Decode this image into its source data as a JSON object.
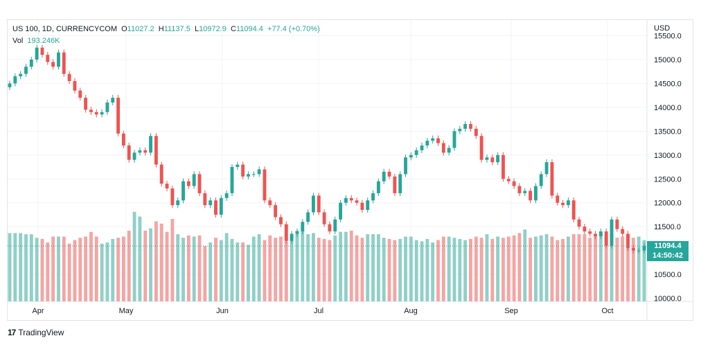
{
  "header": {
    "symbol": "US 100, 1D, CURRENCYCOM",
    "open_label": "O",
    "open": "11027.2",
    "high_label": "H",
    "high": "11137.5",
    "low_label": "L",
    "low": "10972.9",
    "close_label": "C",
    "close": "11094.4",
    "change": "+77.4 (+0.70%)",
    "vol_label": "Vol",
    "vol": "193.246K"
  },
  "price_tag": {
    "price": "11094.4",
    "countdown": "14:50:42"
  },
  "brand": {
    "logo": "17",
    "name": "TradingView"
  },
  "colors": {
    "up": "#26a69a",
    "down": "#ef5350",
    "up_vol": "#8fd0c7",
    "down_vol": "#f4a5a3"
  },
  "chart_data": {
    "type": "candlestick",
    "currency": "USD",
    "y_ticks": [
      "10000.0",
      "10500.0",
      "11000.0",
      "11500.0",
      "12000.0",
      "12500.0",
      "13000.0",
      "13500.0",
      "14000.0",
      "14500.0",
      "15000.0",
      "15500.0"
    ],
    "ylim": [
      10000,
      15500
    ],
    "x_ticks": [
      "Apr",
      "May",
      "Jun",
      "Jul",
      "Aug",
      "Sep",
      "Oct"
    ],
    "grid": true,
    "last_price": 11094.4,
    "closes": [
      14500,
      14650,
      14700,
      14850,
      15000,
      15250,
      15100,
      14950,
      14850,
      15150,
      14700,
      14550,
      14350,
      14200,
      13950,
      13900,
      13850,
      13900,
      14100,
      14200,
      13450,
      13200,
      12900,
      13050,
      13100,
      13050,
      13400,
      12800,
      12400,
      12300,
      11950,
      12050,
      12450,
      12350,
      12600,
      12200,
      11950,
      12050,
      11750,
      12100,
      12200,
      12750,
      12800,
      12550,
      12600,
      12600,
      12700,
      12050,
      11950,
      11700,
      11550,
      11200,
      11350,
      11400,
      11600,
      11800,
      12150,
      11800,
      11550,
      11400,
      11650,
      12000,
      12100,
      12050,
      12000,
      11850,
      12050,
      12200,
      12450,
      12650,
      12550,
      12200,
      12600,
      12950,
      13000,
      13100,
      13200,
      13300,
      13350,
      13250,
      13050,
      13150,
      13500,
      13550,
      13650,
      13550,
      13400,
      12900,
      12950,
      12850,
      13000,
      12500,
      12450,
      12350,
      12200,
      12250,
      12050,
      12350,
      12600,
      12850,
      12150,
      12000,
      11950,
      12050,
      11650,
      11500,
      11400,
      11350,
      11300,
      11400,
      11100,
      11650,
      11450,
      11350,
      11050,
      11000,
      11000,
      11094.4
    ],
    "volumes": [
      58,
      58,
      58,
      57,
      57,
      54,
      53,
      50,
      55,
      55,
      55,
      49,
      52,
      54,
      55,
      59,
      55,
      49,
      50,
      53,
      54,
      55,
      60,
      76,
      72,
      60,
      62,
      68,
      66,
      59,
      70,
      57,
      54,
      56,
      55,
      56,
      47,
      50,
      54,
      52,
      58,
      53,
      50,
      50,
      48,
      55,
      57,
      52,
      56,
      54,
      55,
      51,
      55,
      60,
      60,
      57,
      58,
      54,
      53,
      52,
      56,
      59,
      59,
      60,
      56,
      54,
      57,
      57,
      57,
      54,
      53,
      52,
      53,
      55,
      55,
      52,
      51,
      53,
      50,
      52,
      55,
      55,
      54,
      53,
      52,
      53,
      55,
      54,
      57,
      53,
      55,
      54,
      55,
      56,
      58,
      61,
      54,
      55,
      56,
      57,
      55,
      52,
      53,
      55,
      57,
      57,
      57,
      54,
      56,
      58,
      56,
      58,
      54,
      55,
      56,
      54,
      55,
      52
    ],
    "volume_ylim": [
      0,
      100
    ]
  }
}
